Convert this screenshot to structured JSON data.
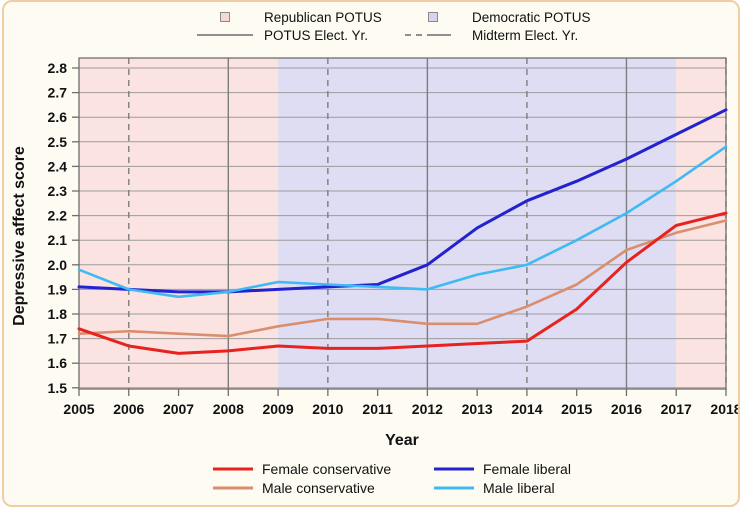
{
  "page": {
    "frame_background": "#fdfbf2",
    "frame_border_color": "#f1cda4"
  },
  "legend_top": {
    "republican_label": "Republican POTUS",
    "democratic_label": "Democratic POTUS",
    "potus_line_label": "POTUS Elect. Yr.",
    "midterm_line_label": "Midterm Elect. Yr.",
    "republican_swatch_color": "#f4d8d4",
    "democratic_swatch_color": "#d7d4ee",
    "line_swatch_color": "#8f8f8f"
  },
  "legend_bottom": {
    "female_conservative": "Female conservative",
    "female_liberal": "Female liberal",
    "male_conservative": "Male conservative",
    "male_liberal": "Male liberal"
  },
  "axes": {
    "xlabel": "Year",
    "ylabel": "Depressive affect score"
  },
  "chart_data": {
    "type": "line",
    "xlabel": "Year",
    "ylabel": "Depressive affect score",
    "x": [
      2005,
      2006,
      2007,
      2008,
      2009,
      2010,
      2011,
      2012,
      2013,
      2014,
      2015,
      2016,
      2017,
      2018
    ],
    "ylim": [
      1.5,
      2.8
    ],
    "ytick_step": 0.1,
    "grid": true,
    "series": [
      {
        "name": "Male conservative",
        "color": "#d98e6e",
        "width": 2.6,
        "values": [
          1.72,
          1.73,
          1.72,
          1.71,
          1.75,
          1.78,
          1.78,
          1.76,
          1.76,
          1.83,
          1.92,
          2.06,
          2.13,
          2.18
        ]
      },
      {
        "name": "Female conservative",
        "color": "#e8221f",
        "width": 3,
        "values": [
          1.74,
          1.67,
          1.64,
          1.65,
          1.67,
          1.66,
          1.66,
          1.67,
          1.68,
          1.69,
          1.82,
          2.01,
          2.16,
          2.21
        ]
      },
      {
        "name": "Female liberal",
        "color": "#2222cf",
        "width": 3,
        "values": [
          1.91,
          1.9,
          1.89,
          1.89,
          1.9,
          1.91,
          1.92,
          2.0,
          2.15,
          2.26,
          2.34,
          2.43,
          2.53,
          2.63
        ]
      },
      {
        "name": "Male liberal",
        "color": "#3fbaf3",
        "width": 2.6,
        "values": [
          1.98,
          1.9,
          1.87,
          1.89,
          1.93,
          1.92,
          1.91,
          1.9,
          1.96,
          2.0,
          2.1,
          2.21,
          2.34,
          2.48
        ]
      }
    ],
    "bands": [
      {
        "label": "Republican POTUS",
        "from": 2005,
        "to": 2009,
        "color": "#fae3e0"
      },
      {
        "label": "Democratic POTUS",
        "from": 2009,
        "to": 2017,
        "color": "#dfddf3"
      },
      {
        "label": "Republican POTUS",
        "from": 2017,
        "to": 2018,
        "color": "#fae3e0"
      }
    ],
    "event_lines": {
      "potus": {
        "label": "POTUS Elect. Yr.",
        "style": "solid",
        "years": [
          2008,
          2012,
          2016
        ]
      },
      "midterm": {
        "label": "Midterm Elect. Yr.",
        "style": "dashed",
        "years": [
          2006,
          2010,
          2014,
          2018
        ]
      }
    },
    "style": {
      "grid_color": "#9c9c9c",
      "border_color": "#6e6e6e",
      "event_line_color": "#7d7d7d",
      "tick_label_color": "#111111"
    },
    "legend_top_position": "top-center",
    "legend_bottom_position": "bottom-center"
  }
}
